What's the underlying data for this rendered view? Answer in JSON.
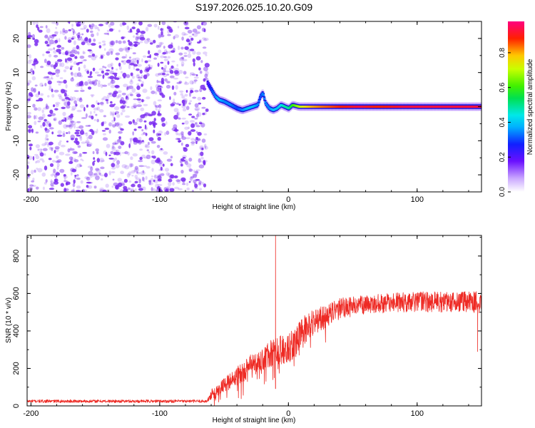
{
  "title": "S197.2026.025.10.20.G09",
  "colors": {
    "snr_line": "#ee2a24",
    "scatter_dot": "#7a2cf0",
    "frame": "#000000"
  },
  "chart_data": [
    {
      "type": "heatmap",
      "name": "spectrogram",
      "xlabel": "Height of straight line (km)",
      "ylabel": "Frequency (Hz)",
      "xlim": [
        -203,
        150
      ],
      "ylim": [
        -25,
        25
      ],
      "xticks": [
        -200,
        -100,
        0,
        100
      ],
      "yticks": [
        -20,
        -10,
        0,
        10,
        20
      ],
      "noise_region_x": [
        -203,
        -63
      ],
      "ridge": {
        "x": [
          -63,
          -60,
          -57,
          -54,
          -50,
          -45,
          -40,
          -36,
          -32,
          -28,
          -24,
          -22,
          -20,
          -18,
          -15,
          -12,
          -9,
          -6,
          -3,
          0,
          3,
          8,
          15,
          25,
          40,
          55,
          70,
          90,
          110,
          130,
          150
        ],
        "freq": [
          7,
          5,
          3,
          2,
          1.5,
          0.5,
          -0.5,
          -1,
          -0.5,
          0,
          0.5,
          3,
          4,
          1,
          -0.5,
          -1,
          -0.5,
          0.5,
          0,
          -0.5,
          0.5,
          0,
          0,
          0,
          0,
          0,
          0,
          0,
          0,
          0,
          0
        ],
        "amplitude": [
          0.2,
          0.3,
          0.35,
          0.4,
          0.35,
          0.35,
          0.3,
          0.35,
          0.4,
          0.4,
          0.35,
          0.3,
          0.35,
          0.35,
          0.35,
          0.4,
          0.4,
          0.45,
          0.5,
          0.5,
          0.6,
          0.7,
          0.8,
          0.85,
          0.9,
          0.95,
          0.9,
          0.95,
          0.95,
          0.95,
          0.95
        ]
      },
      "colorbar": {
        "label": "Normalized spectral amplitude",
        "ticks": [
          0.0,
          0.2,
          0.4,
          0.6,
          0.8
        ],
        "tick_labels": [
          "0.0",
          "0.2",
          "0.4",
          "0.6",
          "0.8"
        ],
        "range": [
          0,
          0.98
        ]
      }
    },
    {
      "type": "line",
      "name": "snr",
      "xlabel": "Height of straight line (km)",
      "ylabel": "SNR (10 * v/v)",
      "xlim": [
        -203,
        150
      ],
      "ylim": [
        0,
        910
      ],
      "xticks": [
        -200,
        -100,
        0,
        100
      ],
      "yticks": [
        0,
        200,
        400,
        600,
        800
      ],
      "envelope": {
        "x": [
          -203,
          -63,
          -60,
          -50,
          -40,
          -30,
          -20,
          -10,
          0,
          10,
          20,
          30,
          40,
          60,
          80,
          100,
          120,
          150
        ],
        "y": [
          25,
          25,
          60,
          110,
          160,
          210,
          250,
          290,
          310,
          390,
          450,
          480,
          520,
          540,
          550,
          555,
          555,
          555
        ]
      },
      "noise_amplitude": {
        "x": [
          -203,
          -63,
          -60,
          -20,
          0,
          30,
          60,
          150
        ],
        "y": [
          8,
          8,
          30,
          70,
          90,
          60,
          50,
          60
        ]
      },
      "spikes": [
        {
          "x": -10,
          "y": 910
        },
        {
          "x": -11,
          "y": 150
        },
        {
          "x": 147,
          "y": 290
        }
      ]
    }
  ]
}
